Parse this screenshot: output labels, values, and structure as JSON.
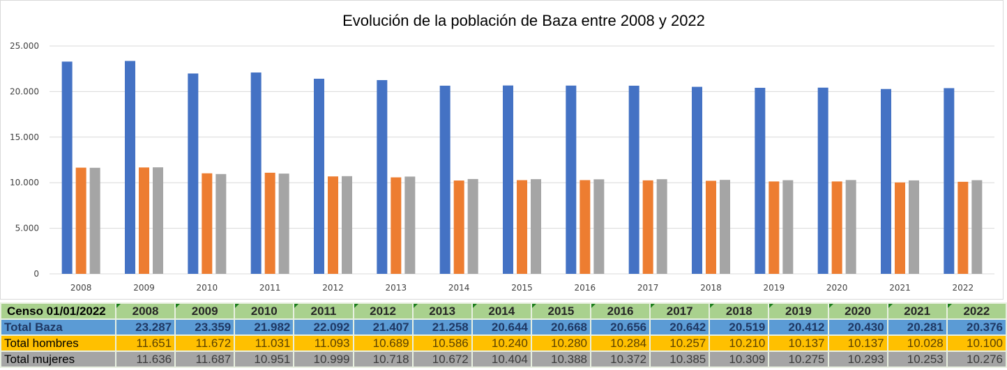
{
  "chart_data": {
    "type": "bar",
    "title": "Evolución de la población de Baza entre 2008 y 2022",
    "xlabel": "",
    "ylabel": "",
    "ylim": [
      0,
      25000
    ],
    "y_ticks": [
      0,
      5000,
      10000,
      15000,
      20000,
      25000
    ],
    "y_tick_labels": [
      "0",
      "5.000",
      "10.000",
      "15.000",
      "20.000",
      "25.000"
    ],
    "grid": true,
    "legend": "none",
    "categories": [
      "2008",
      "2009",
      "2010",
      "2011",
      "2012",
      "2013",
      "2014",
      "2015",
      "2016",
      "2017",
      "2018",
      "2019",
      "2020",
      "2021",
      "2022"
    ],
    "series": [
      {
        "name": "Total Baza",
        "color": "#4472c4",
        "values": [
          23287,
          23359,
          21982,
          22092,
          21407,
          21258,
          20644,
          20668,
          20656,
          20642,
          20519,
          20412,
          20430,
          20281,
          20376
        ]
      },
      {
        "name": "Total hombres",
        "color": "#ed7d31",
        "values": [
          11651,
          11672,
          11031,
          11093,
          10689,
          10586,
          10240,
          10280,
          10284,
          10257,
          10210,
          10137,
          10137,
          10028,
          10100
        ]
      },
      {
        "name": "Total mujeres",
        "color": "#a5a5a5",
        "values": [
          11636,
          11687,
          10951,
          10999,
          10718,
          10672,
          10404,
          10388,
          10372,
          10385,
          10309,
          10275,
          10293,
          10253,
          10276
        ]
      }
    ]
  },
  "table": {
    "header_label": "Censo 01/01/2022",
    "years": [
      "2008",
      "2009",
      "2010",
      "2011",
      "2012",
      "2013",
      "2014",
      "2015",
      "2016",
      "2017",
      "2018",
      "2019",
      "2020",
      "2021",
      "2022"
    ],
    "rows": [
      {
        "label": "Total Baza",
        "values": [
          "23.287",
          "23.359",
          "21.982",
          "22.092",
          "21.407",
          "21.258",
          "20.644",
          "20.668",
          "20.656",
          "20.642",
          "20.519",
          "20.412",
          "20.430",
          "20.281",
          "20.376"
        ]
      },
      {
        "label": "Total hombres",
        "values": [
          "11.651",
          "11.672",
          "11.031",
          "11.093",
          "10.689",
          "10.586",
          "10.240",
          "10.280",
          "10.284",
          "10.257",
          "10.210",
          "10.137",
          "10.137",
          "10.028",
          "10.100"
        ]
      },
      {
        "label": "Total mujeres",
        "values": [
          "11.636",
          "11.687",
          "10.951",
          "10.999",
          "10.718",
          "10.672",
          "10.404",
          "10.388",
          "10.372",
          "10.385",
          "10.309",
          "10.275",
          "10.293",
          "10.253",
          "10.276"
        ]
      }
    ]
  }
}
